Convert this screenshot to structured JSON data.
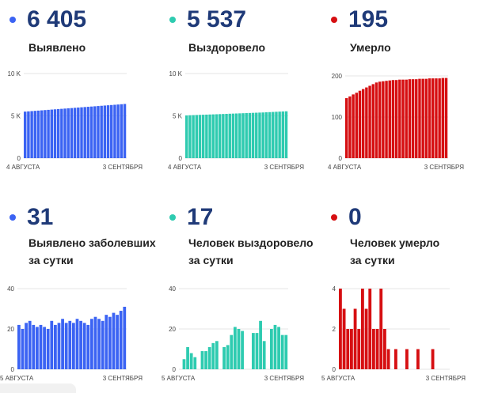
{
  "stats": [
    {
      "value": "6 405",
      "label_lines": [
        "Выявлено"
      ],
      "color": "#3b63f3"
    },
    {
      "value": "5 537",
      "label_lines": [
        "Выздоровело"
      ],
      "color": "#2ecbb0"
    },
    {
      "value": "195",
      "label_lines": [
        "Умерло"
      ],
      "color": "#d60f12"
    },
    {
      "value": "31",
      "label_lines": [
        "Выявлено заболевших",
        "за сутки"
      ],
      "color": "#3b63f3"
    },
    {
      "value": "17",
      "label_lines": [
        "Человек выздоровело",
        "за сутки"
      ],
      "color": "#2ecbb0"
    },
    {
      "value": "0",
      "label_lines": [
        "Человек умерло",
        "за сутки"
      ],
      "color": "#d60f12"
    }
  ],
  "chart_data": [
    {
      "type": "bar",
      "color": "#3b63f3",
      "yticks": [
        "10 K",
        "5 K",
        "0"
      ],
      "ylim": [
        0,
        10000
      ],
      "x_start_label": "4 АВГУСТА",
      "x_end_label": "3 СЕНТЯБРЯ",
      "values": [
        5500,
        5530,
        5560,
        5590,
        5620,
        5650,
        5680,
        5710,
        5740,
        5770,
        5800,
        5830,
        5860,
        5890,
        5920,
        5950,
        5980,
        6010,
        6040,
        6070,
        6100,
        6130,
        6160,
        6190,
        6220,
        6250,
        6280,
        6310,
        6340,
        6374,
        6405
      ]
    },
    {
      "type": "bar",
      "color": "#2ecbb0",
      "yticks": [
        "10 K",
        "5 K",
        "0"
      ],
      "ylim": [
        0,
        10000
      ],
      "x_start_label": "4 АВГУСТА",
      "x_end_label": "3 СЕНТЯБРЯ",
      "values": [
        5050,
        5070,
        5085,
        5100,
        5115,
        5130,
        5145,
        5160,
        5175,
        5190,
        5205,
        5220,
        5235,
        5250,
        5265,
        5280,
        5295,
        5310,
        5325,
        5340,
        5355,
        5370,
        5385,
        5400,
        5420,
        5440,
        5460,
        5480,
        5500,
        5520,
        5537
      ]
    },
    {
      "type": "bar",
      "color": "#d60f12",
      "yticks": [
        "200",
        "100",
        "0"
      ],
      "ylim": [
        0,
        200
      ],
      "x_start_label": "4 АВГУСТА",
      "x_end_label": "3 СЕНТЯБРЯ",
      "values": [
        146,
        150,
        155,
        159,
        164,
        168,
        172,
        176,
        180,
        184,
        186,
        187,
        188,
        189,
        190,
        190,
        191,
        191,
        191,
        192,
        192,
        192,
        193,
        193,
        193,
        194,
        194,
        194,
        194,
        195,
        195
      ]
    },
    {
      "type": "bar",
      "color": "#3b63f3",
      "yticks": [
        "40",
        "20",
        "0"
      ],
      "ylim": [
        0,
        40
      ],
      "x_start_label": "5 АВГУСТА",
      "x_end_label": "3 СЕНТЯБРЯ",
      "values": [
        22,
        20,
        23,
        24,
        22,
        21,
        22,
        21,
        20,
        24,
        22,
        23,
        25,
        23,
        24,
        23,
        25,
        24,
        23,
        22,
        25,
        26,
        25,
        24,
        27,
        26,
        28,
        27,
        29,
        31
      ]
    },
    {
      "type": "bar",
      "color": "#2ecbb0",
      "yticks": [
        "40",
        "20",
        "0"
      ],
      "ylim": [
        0,
        40
      ],
      "x_start_label": "5 АВГУСТА",
      "x_end_label": "3 СЕНТЯБРЯ",
      "values": [
        0,
        5,
        11,
        8,
        6,
        0,
        9,
        9,
        11,
        13,
        14,
        0,
        11,
        12,
        17,
        21,
        20,
        19,
        0,
        0,
        18,
        18,
        24,
        14,
        0,
        20,
        22,
        21,
        17,
        17
      ]
    },
    {
      "type": "bar",
      "color": "#d60f12",
      "yticks": [
        "4",
        "2",
        "0"
      ],
      "ylim": [
        0,
        4
      ],
      "x_start_label": "5 АВГУСТА",
      "x_end_label": "3 СЕНТЯБРЯ",
      "values": [
        4,
        3,
        2,
        2,
        3,
        2,
        4,
        3,
        4,
        2,
        2,
        4,
        2,
        1,
        0,
        1,
        0,
        0,
        1,
        0,
        0,
        1,
        0,
        0,
        0,
        1,
        0,
        0,
        0,
        0
      ]
    }
  ]
}
